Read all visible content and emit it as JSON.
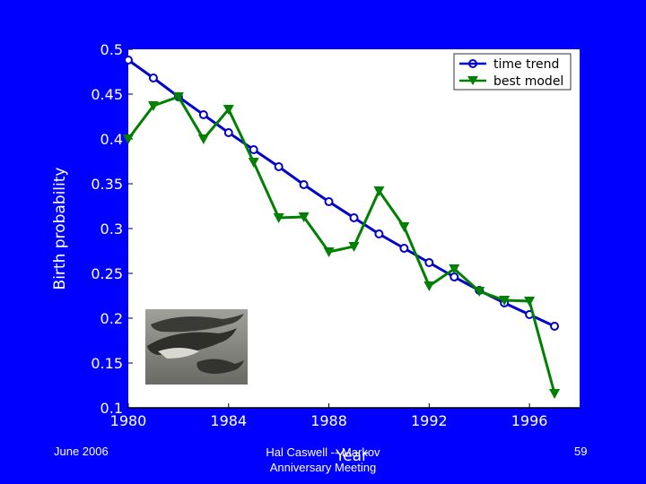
{
  "chart_data": {
    "type": "line",
    "title": "",
    "xlabel": "Year",
    "ylabel": "Birth probability",
    "xlim": [
      1980,
      1998
    ],
    "ylim": [
      0.1,
      0.5
    ],
    "x_ticks": [
      1980,
      1984,
      1988,
      1992,
      1996
    ],
    "y_ticks": [
      "0.1",
      "0.15",
      "0.2",
      "0.25",
      "0.3",
      "0.35",
      "0.4",
      "0.45",
      "0.5"
    ],
    "legend_position": "top-right",
    "grid": false,
    "x": [
      1980,
      1981,
      1982,
      1983,
      1984,
      1985,
      1986,
      1987,
      1988,
      1989,
      1990,
      1991,
      1992,
      1993,
      1994,
      1995,
      1996,
      1997
    ],
    "series": [
      {
        "name": "time trend",
        "color": "#0000cc",
        "marker": "circle",
        "values": [
          0.488,
          0.468,
          0.447,
          0.427,
          0.407,
          0.388,
          0.369,
          0.349,
          0.33,
          0.312,
          0.294,
          0.278,
          0.262,
          0.246,
          0.231,
          0.217,
          0.204,
          0.191
        ]
      },
      {
        "name": "best model",
        "color": "#008000",
        "marker": "triangle-down",
        "values": [
          0.4,
          0.437,
          0.447,
          0.4,
          0.433,
          0.374,
          0.312,
          0.313,
          0.274,
          0.28,
          0.342,
          0.302,
          0.236,
          0.255,
          0.23,
          0.22,
          0.219,
          0.116
        ]
      }
    ]
  },
  "footer": {
    "date": "June 2006",
    "author_line1": "Hal Caswell -- Markov",
    "author_line2": "Anniversary Meeting",
    "page": "59"
  },
  "photo": {
    "icon": "whales-photo"
  }
}
